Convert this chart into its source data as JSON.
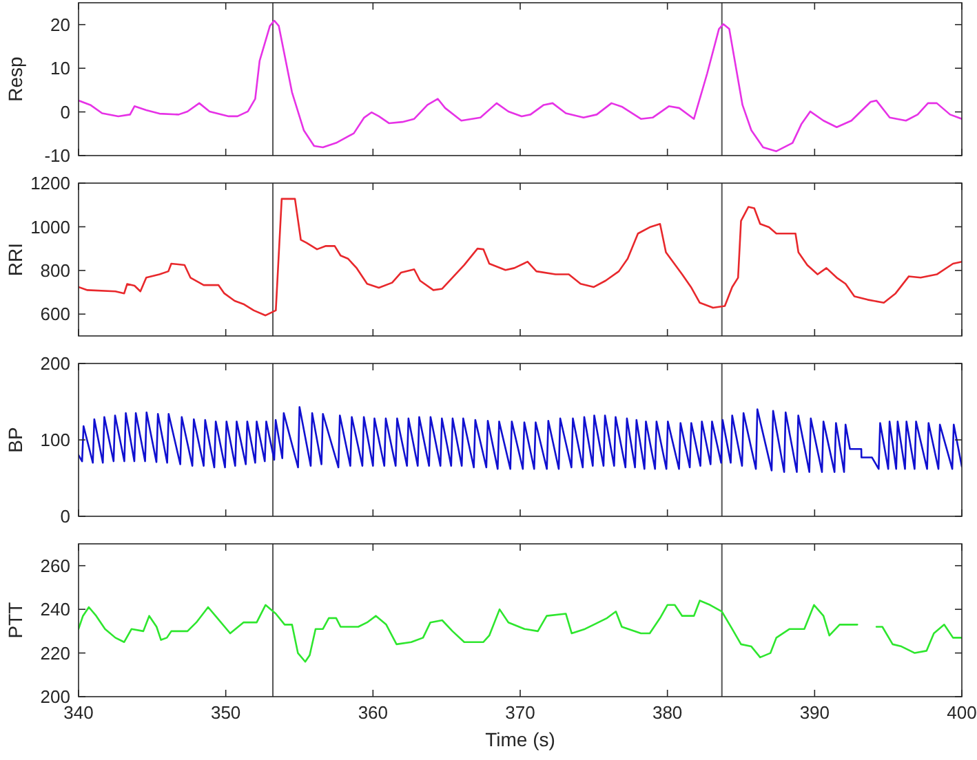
{
  "chart_data": [
    {
      "type": "line",
      "ylabel": "Resp",
      "xlim": [
        340,
        400
      ],
      "xticks": [
        340,
        350,
        360,
        370,
        380,
        390,
        400
      ],
      "ylim": [
        -10,
        25
      ],
      "yticks": [
        -10,
        0,
        10,
        20
      ],
      "tick_labels": "y",
      "ref_lines": [
        {
          "axis": "x",
          "value": 353.2,
          "color": "#555555"
        },
        {
          "axis": "x",
          "value": 383.7,
          "color": "#555555"
        }
      ],
      "series": [
        {
          "color": "#e632e6",
          "x": [
            340,
            340.8,
            341.6,
            342.7,
            343.5,
            343.8,
            344.6,
            345.5,
            346.8,
            347.4,
            348.2,
            348.9,
            350.2,
            350.8,
            351.5,
            352.0,
            352.3,
            353.0,
            353.3,
            353.6,
            354.5,
            355.3,
            356.0,
            356.6,
            357.5,
            358.7,
            359.4,
            359.9,
            360.4,
            361.1,
            362.0,
            362.8,
            363.7,
            364.4,
            364.9,
            366.0,
            367.3,
            368.4,
            369.2,
            370.1,
            370.7,
            371.6,
            372.2,
            373.1,
            374.3,
            375.2,
            376.2,
            376.9,
            378.2,
            379.0,
            380.1,
            380.8,
            381.8,
            382.7,
            383.5,
            383.8,
            384.2,
            385.1,
            385.7,
            386.5,
            387.4,
            388.5,
            389.1,
            389.7,
            390.6,
            391.5,
            392.5,
            393.8,
            394.2,
            395.1,
            396.2,
            397.0,
            397.7,
            398.3,
            399.2,
            400
          ],
          "values": [
            2.6,
            1.6,
            -0.3,
            -1,
            -0.6,
            1.3,
            0.4,
            -0.4,
            -0.6,
            0.1,
            2.0,
            0.1,
            -1,
            -1,
            0.1,
            3,
            11.7,
            19.7,
            20.9,
            19.7,
            4.5,
            -4.2,
            -7.8,
            -8.1,
            -7.1,
            -4.9,
            -1.3,
            -0.1,
            -1,
            -2.6,
            -2.3,
            -1.6,
            1.6,
            3.0,
            0.9,
            -2,
            -1.3,
            2,
            0.1,
            -1,
            -0.6,
            1.6,
            2,
            -0.3,
            -1.3,
            -0.6,
            2,
            1.2,
            -1.6,
            -1.3,
            1.3,
            0.9,
            -1.6,
            8.8,
            19,
            20.1,
            19,
            1.6,
            -4.2,
            -8.1,
            -9,
            -7.1,
            -2.8,
            0.1,
            -2,
            -3.5,
            -2,
            2.3,
            2.6,
            -1.3,
            -2,
            -0.6,
            2,
            2,
            -0.6,
            -1.6
          ]
        }
      ]
    },
    {
      "type": "line",
      "ylabel": "RRI",
      "xlim": [
        340,
        400
      ],
      "xticks": [
        340,
        350,
        360,
        370,
        380,
        390,
        400
      ],
      "ylim": [
        500,
        1200
      ],
      "yticks": [
        600,
        800,
        1000,
        1200
      ],
      "tick_labels": "y",
      "ref_lines": [
        {
          "axis": "x",
          "value": 353.2,
          "color": "#555555"
        },
        {
          "axis": "x",
          "value": 383.7,
          "color": "#555555"
        }
      ],
      "series": [
        {
          "color": "#e8282c",
          "x": [
            340,
            340.6,
            342.5,
            343.1,
            343.3,
            343.8,
            344.2,
            344.6,
            345.5,
            346.1,
            346.3,
            347.2,
            347.6,
            348.5,
            349.5,
            349.9,
            350.6,
            351.2,
            351.9,
            352.7,
            353.4,
            353.8,
            354.7,
            355.1,
            355.5,
            356.2,
            356.8,
            357.4,
            357.8,
            358.3,
            358.9,
            359.6,
            360.4,
            361.3,
            361.9,
            362.8,
            363.2,
            364.1,
            364.7,
            365.2,
            366.2,
            367.1,
            367.5,
            367.9,
            369.0,
            369.6,
            370.5,
            371.1,
            372.4,
            373.3,
            374.1,
            375.0,
            375.8,
            376.7,
            377.3,
            378.0,
            378.8,
            379.5,
            379.9,
            381.0,
            381.6,
            382.2,
            383.1,
            383.9,
            384.4,
            384.8,
            385.0,
            385.5,
            385.9,
            386.3,
            386.9,
            387.4,
            388.7,
            388.9,
            389.5,
            390.2,
            390.8,
            391.5,
            392.1,
            392.7,
            393.6,
            394.7,
            395.5,
            396.4,
            397.2,
            398.3,
            399.4,
            400
          ],
          "values": [
            724,
            710,
            704,
            695,
            738,
            730,
            704,
            767,
            782,
            796,
            831,
            825,
            767,
            733,
            733,
            695,
            661,
            646,
            617,
            594,
            617,
            1128,
            1128,
            940,
            926,
            897,
            912,
            912,
            868,
            854,
            810,
            739,
            721,
            744,
            790,
            805,
            753,
            710,
            716,
            753,
            825,
            900,
            897,
            831,
            802,
            811,
            840,
            796,
            782,
            782,
            739,
            724,
            753,
            796,
            854,
            969,
            998,
            1013,
            883,
            782,
            724,
            652,
            629,
            637,
            724,
            767,
            1027,
            1091,
            1085,
            1013,
            998,
            969,
            969,
            883,
            825,
            782,
            811,
            767,
            739,
            681,
            666,
            652,
            695,
            773,
            767,
            782,
            831,
            840
          ]
        }
      ]
    },
    {
      "type": "line",
      "ylabel": "BP",
      "xlim": [
        340,
        400
      ],
      "xticks": [
        340,
        350,
        360,
        370,
        380,
        390,
        400
      ],
      "ylim": [
        0,
        200
      ],
      "yticks": [
        0,
        100,
        200
      ],
      "tick_labels": "y",
      "ref_lines": [
        {
          "axis": "x",
          "value": 353.2,
          "color": "#555555"
        },
        {
          "axis": "x",
          "value": 383.7,
          "color": "#555555"
        }
      ],
      "series": [
        {
          "color": "#1010d0",
          "x": [
            340,
            340.24,
            340.34,
            340.97,
            341.07,
            341.65,
            341.75,
            342.38,
            342.48,
            343.11,
            343.21,
            343.79,
            343.89,
            344.52,
            344.62,
            345.29,
            345.39,
            346.02,
            346.12,
            346.91,
            347.01,
            347.73,
            347.83,
            348.5,
            348.6,
            349.22,
            349.32,
            349.95,
            350.05,
            350.64,
            350.74,
            351.36,
            351.46,
            352.0,
            352.1,
            352.65,
            352.75,
            353.29,
            353.39,
            353.84,
            353.94,
            354.91,
            355.01,
            355.77,
            355.87,
            356.5,
            356.6,
            357.65,
            357.75,
            358.46,
            358.56,
            359.28,
            359.38,
            360.0,
            360.1,
            360.77,
            360.87,
            361.54,
            361.64,
            362.31,
            362.41,
            363.04,
            363.14,
            363.81,
            363.91,
            364.58,
            364.68,
            365.31,
            365.41,
            366.03,
            366.13,
            366.85,
            366.95,
            367.7,
            367.8,
            368.47,
            368.57,
            369.33,
            369.43,
            370.18,
            370.28,
            370.95,
            371.05,
            371.81,
            371.91,
            372.62,
            372.72,
            373.48,
            373.58,
            374.25,
            374.35,
            374.93,
            375.03,
            375.66,
            375.76,
            376.38,
            376.48,
            377.15,
            377.25,
            377.8,
            377.9,
            378.44,
            378.54,
            379.16,
            379.26,
            379.93,
            380.03,
            380.79,
            380.89,
            381.52,
            381.62,
            382.24,
            382.34,
            382.93,
            383.03,
            383.65,
            383.75,
            384.3,
            384.4,
            385.07,
            385.17,
            386.01,
            386.11,
            387.08,
            387.18,
            387.93,
            388.03,
            388.79,
            388.89,
            389.64,
            389.74,
            390.5,
            390.6,
            391.35,
            391.45,
            392.0,
            392.1,
            392.4,
            393.17,
            393.18,
            393.9,
            394.35,
            394.45,
            395.0,
            395.09,
            395.54,
            395.64,
            396.14,
            396.24,
            396.79,
            396.89,
            397.64,
            397.74,
            398.41,
            398.51,
            399.35,
            399.45,
            400
          ],
          "values": [
            80,
            72,
            118,
            70,
            127,
            70,
            130,
            72,
            132,
            72,
            135,
            72,
            135,
            72,
            136,
            71,
            134,
            70,
            134,
            68,
            130,
            66,
            127,
            66,
            126,
            64,
            124,
            64,
            124,
            66,
            124,
            68,
            124,
            70,
            124,
            72,
            124,
            74,
            126,
            76,
            135,
            64,
            143,
            66,
            135,
            68,
            134,
            64,
            132,
            66,
            130,
            66,
            130,
            66,
            128,
            66,
            128,
            66,
            128,
            66,
            128,
            66,
            130,
            66,
            130,
            66,
            128,
            66,
            128,
            66,
            128,
            64,
            126,
            64,
            125,
            62,
            124,
            62,
            124,
            62,
            123,
            62,
            123,
            62,
            125,
            62,
            128,
            64,
            128,
            64,
            130,
            66,
            132,
            66,
            132,
            66,
            130,
            64,
            128,
            64,
            126,
            62,
            124,
            62,
            124,
            62,
            124,
            62,
            122,
            64,
            122,
            66,
            124,
            68,
            124,
            70,
            126,
            70,
            132,
            66,
            135,
            62,
            140,
            60,
            138,
            58,
            136,
            58,
            132,
            58,
            128,
            58,
            124,
            58,
            122,
            58,
            120,
            88,
            88,
            77,
            77,
            62,
            122,
            62,
            124,
            62,
            124,
            62,
            124,
            62,
            124,
            62,
            122,
            62,
            120,
            62,
            120,
            65
          ]
        }
      ]
    },
    {
      "type": "line",
      "ylabel": "PTT",
      "xlabel": "Time (s)",
      "xlim": [
        340,
        400
      ],
      "xticks": [
        340,
        350,
        360,
        370,
        380,
        390,
        400
      ],
      "ylim": [
        200,
        270
      ],
      "yticks": [
        200,
        220,
        240,
        260
      ],
      "ref_lines": [
        {
          "axis": "x",
          "value": 353.2,
          "color": "#555555"
        },
        {
          "axis": "x",
          "value": 383.7,
          "color": "#555555"
        }
      ],
      "series": [
        {
          "color": "#2ee62e",
          "x": [
            340,
            340.3,
            340.7,
            341.2,
            341.8,
            342.5,
            343.1,
            343.6,
            344.4,
            344.8,
            345.3,
            345.6,
            346.0,
            346.3,
            347.4,
            348.0,
            348.8,
            349.3,
            350.3,
            351.2,
            352.1,
            352.7,
            353.4,
            354.0,
            354.5,
            354.9,
            355.4,
            355.7,
            356.1,
            356.6,
            357.0,
            357.5,
            357.8,
            359.0,
            359.6,
            360.2,
            360.9,
            361.6,
            362.6,
            363.4,
            363.9,
            364.7,
            365.4,
            366.2,
            367.5,
            367.9,
            368.6,
            369.2,
            370.3,
            371.2,
            371.8,
            373.1,
            373.5,
            374.4,
            375.0,
            375.9,
            376.5,
            376.9,
            378.2,
            378.8,
            379.5,
            380.0,
            380.5,
            381.0,
            381.8,
            382.2,
            382.9,
            383.7,
            384.4,
            385.0,
            385.7,
            386.3,
            387.0,
            387.4,
            388.3,
            389.3,
            389.96,
            390.6,
            391.0,
            391.7,
            392.3,
            392.9
          ],
          "values": [
            231,
            237,
            241,
            237,
            231,
            227,
            225,
            231,
            230,
            237,
            232,
            226,
            227,
            230,
            230,
            234,
            241,
            237,
            229,
            234,
            234,
            242,
            238,
            233,
            233,
            220,
            216,
            219,
            231,
            231,
            236,
            236,
            232,
            232,
            234,
            237,
            233,
            224,
            225,
            227,
            234,
            235,
            230,
            225,
            225,
            228,
            240,
            234,
            231,
            230,
            237,
            238,
            229,
            231,
            233,
            236,
            239,
            232,
            229,
            229,
            236,
            242,
            242,
            237,
            237,
            244,
            242,
            239,
            231,
            224,
            223,
            218,
            220,
            227,
            231,
            231,
            242,
            237,
            228,
            233,
            233,
            233
          ]
        },
        {
          "color": "#2ee62e",
          "x": [
            394.2,
            394.6,
            395.3,
            395.9,
            396.8,
            397.6,
            398.1,
            398.8,
            399.4,
            400
          ],
          "values": [
            232,
            232,
            224,
            223,
            220,
            221,
            229,
            233,
            227,
            227
          ]
        }
      ]
    }
  ]
}
